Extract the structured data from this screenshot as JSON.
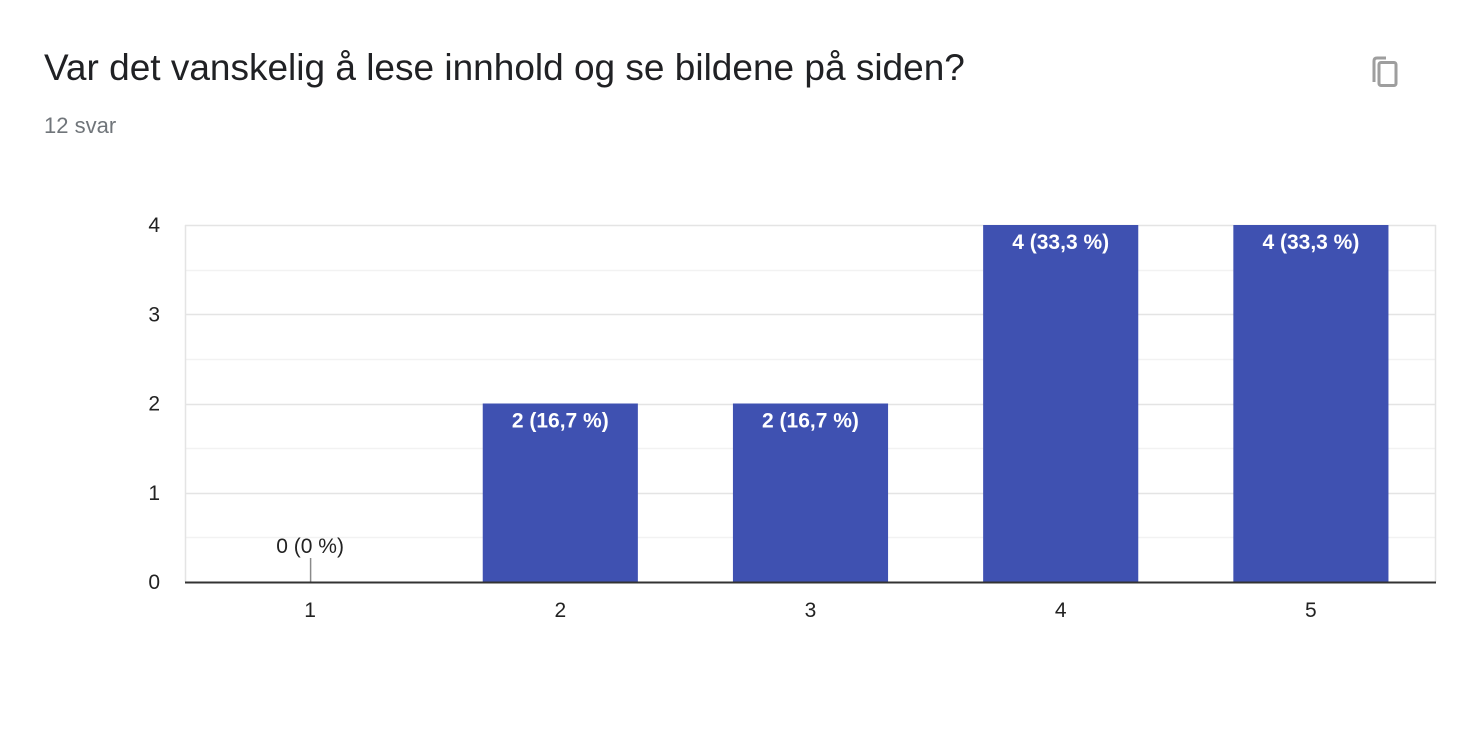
{
  "question": {
    "title": "Var det vanskelig å lese innhold og se bildene på siden?",
    "response_count": "12 svar"
  },
  "copy_button": {
    "icon": "copy-icon"
  },
  "colors": {
    "bar": "#3f51b1",
    "grid": "#ebebeb",
    "axis": "#333333"
  },
  "chart_data": {
    "type": "bar",
    "title": "",
    "xlabel": "",
    "ylabel": "",
    "categories": [
      "1",
      "2",
      "3",
      "4",
      "5"
    ],
    "values": [
      0,
      2,
      2,
      4,
      4
    ],
    "data_labels": [
      "0 (0 %)",
      "2 (16,7 %)",
      "2 (16,7 %)",
      "4 (33,3 %)",
      "4 (33,3 %)"
    ],
    "ylim": [
      0,
      4
    ],
    "yticks": [
      "0",
      "1",
      "2",
      "3",
      "4"
    ],
    "grid": true,
    "legend": "none"
  }
}
